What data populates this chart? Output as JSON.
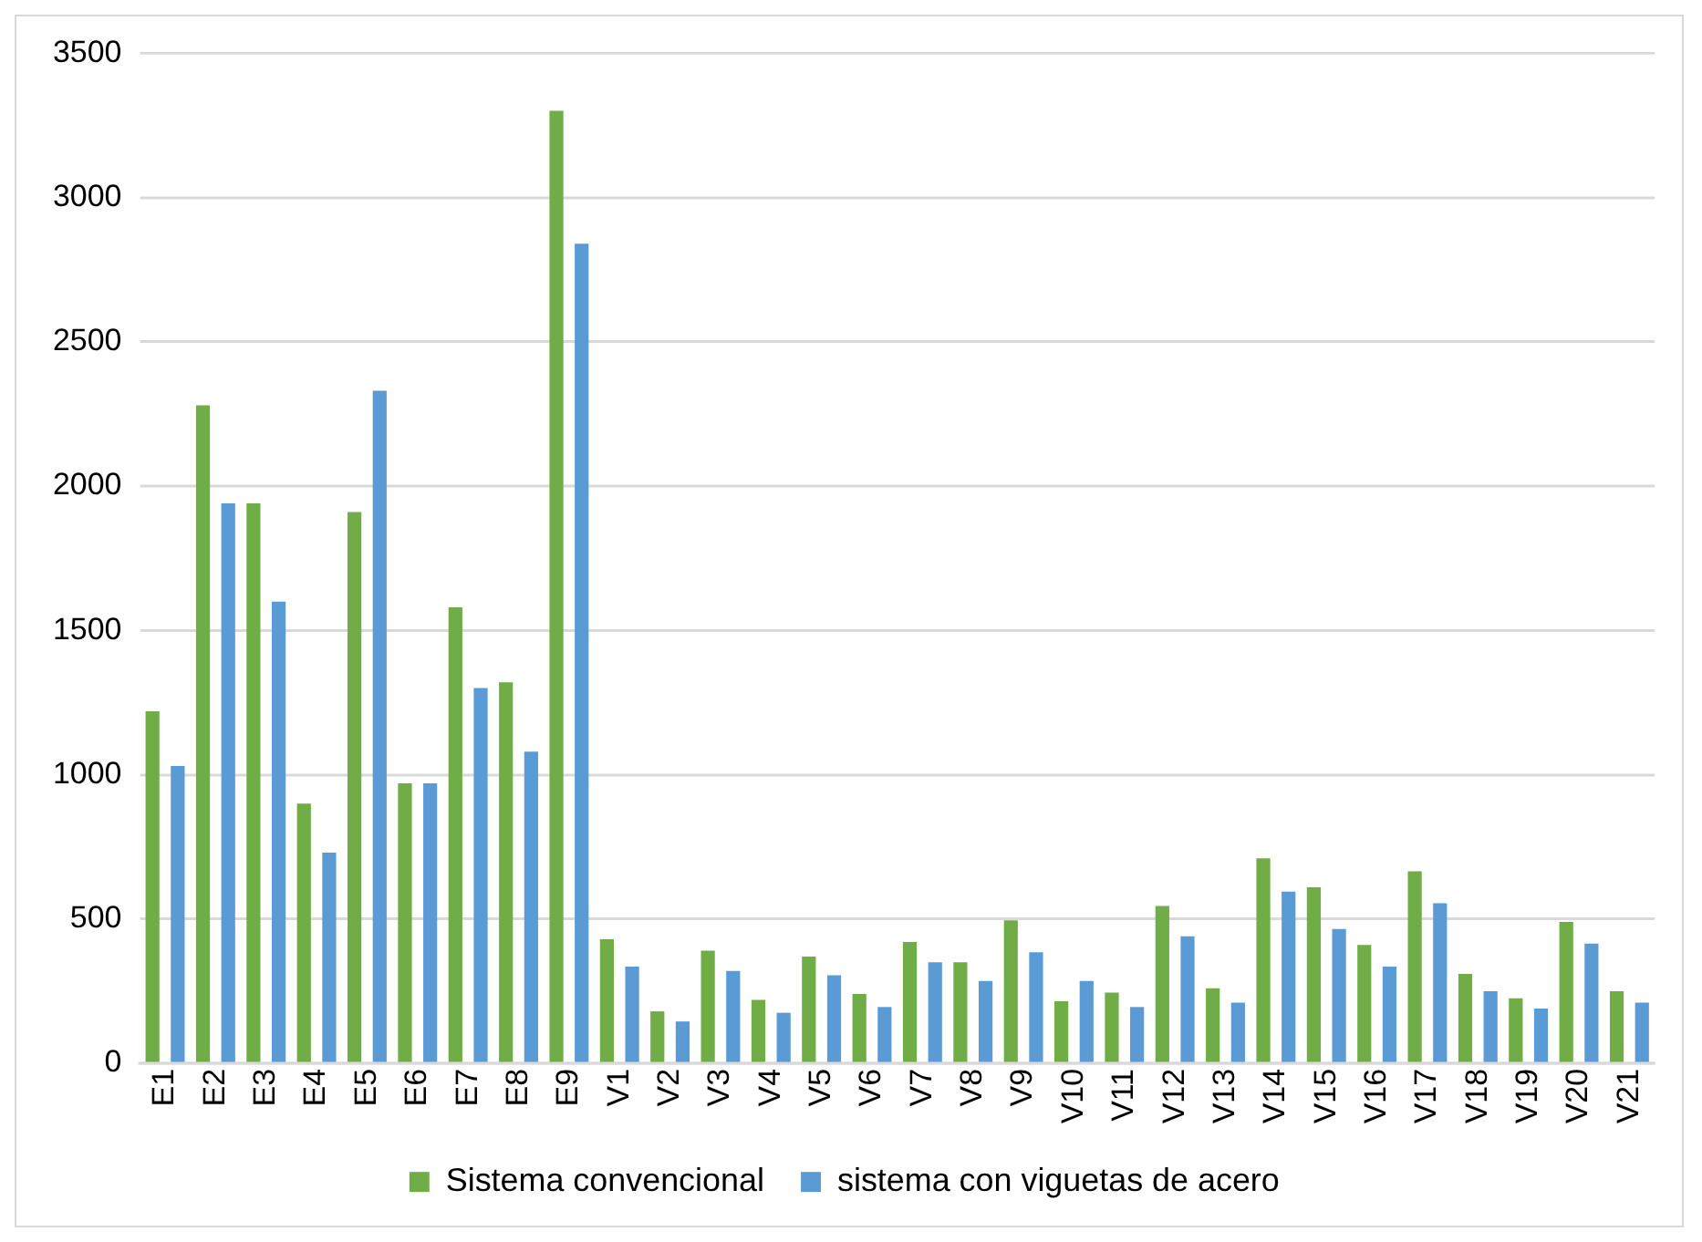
{
  "chart_data": {
    "type": "bar",
    "categories": [
      "E1",
      "E2",
      "E3",
      "E4",
      "E5",
      "E6",
      "E7",
      "E8",
      "E9",
      "V1",
      "V2",
      "V3",
      "V4",
      "V5",
      "V6",
      "V7",
      "V8",
      "V9",
      "V10",
      "V11",
      "V12",
      "V13",
      "V14",
      "V15",
      "V16",
      "V17",
      "V18",
      "V19",
      "V20",
      "V21"
    ],
    "series": [
      {
        "name": "Sistema convencional",
        "color": "#70ad47",
        "values": [
          1220,
          2280,
          1940,
          900,
          1910,
          970,
          1580,
          1320,
          3300,
          430,
          180,
          390,
          220,
          370,
          240,
          420,
          350,
          495,
          215,
          245,
          545,
          260,
          710,
          610,
          410,
          665,
          310,
          225,
          490,
          250
        ]
      },
      {
        "name": "sistema con viguetas de acero",
        "color": "#5b9bd5",
        "values": [
          1030,
          1940,
          1600,
          730,
          2330,
          970,
          1300,
          1080,
          2840,
          335,
          145,
          320,
          175,
          305,
          195,
          350,
          285,
          385,
          285,
          195,
          440,
          210,
          595,
          465,
          335,
          555,
          250,
          190,
          415,
          210
        ]
      }
    ],
    "ylim": [
      0,
      3500
    ],
    "yticks": [
      0,
      500,
      1000,
      1500,
      2000,
      2500,
      3000,
      3500
    ],
    "grid": "y",
    "legend": "bottom"
  }
}
